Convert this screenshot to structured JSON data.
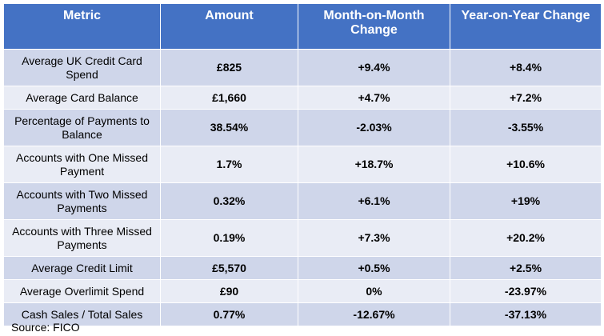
{
  "table": {
    "headers": [
      "Metric",
      "Amount",
      "Month-on-Month Change",
      "Year-on-Year Change"
    ],
    "rows": [
      [
        "Average UK Credit Card Spend",
        "£825",
        "+9.4%",
        "+8.4%"
      ],
      [
        "Average Card Balance",
        "£1,660",
        "+4.7%",
        "+7.2%"
      ],
      [
        "Percentage of Payments to Balance",
        "38.54%",
        "-2.03%",
        "-3.55%"
      ],
      [
        "Accounts with One Missed Payment",
        "1.7%",
        "+18.7%",
        "+10.6%"
      ],
      [
        "Accounts with Two Missed Payments",
        "0.32%",
        "+6.1%",
        "+19%"
      ],
      [
        "Accounts with Three Missed Payments",
        "0.19%",
        "+7.3%",
        "+20.2%"
      ],
      [
        "Average Credit Limit",
        "£5,570",
        "+0.5%",
        "+2.5%"
      ],
      [
        "Average Overlimit Spend",
        "£90",
        "0%",
        "-23.97%"
      ],
      [
        "Cash Sales / Total Sales",
        "0.77%",
        "-12.67%",
        "-37.13%"
      ]
    ]
  },
  "source": "Source: FICO",
  "colors": {
    "header_bg": "#4472c4",
    "row_odd_bg": "#cfd6ea",
    "row_even_bg": "#e9ecf5",
    "header_text": "#ffffff"
  }
}
